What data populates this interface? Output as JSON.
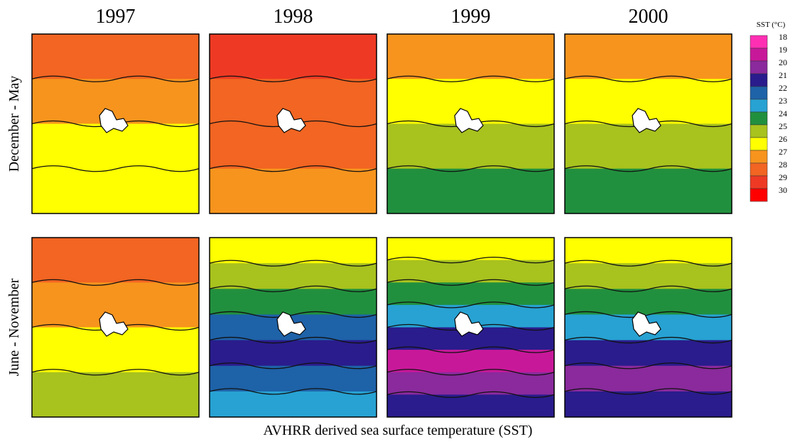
{
  "header": {
    "columns": [
      "1997",
      "1998",
      "1999",
      "2000"
    ],
    "rows": [
      "December - May",
      "June - November"
    ]
  },
  "legend": {
    "title": "SST (°C)",
    "ticks": [
      18,
      19,
      20,
      21,
      22,
      23,
      24,
      25,
      26,
      27,
      28,
      29,
      30
    ],
    "colors": [
      "#ff2fb4",
      "#c8189a",
      "#8a2a9c",
      "#2a1c8c",
      "#1e62a8",
      "#27a2d2",
      "#21903e",
      "#a8c21e",
      "#ffff00",
      "#f7941d",
      "#f26522",
      "#ee3a24",
      "#ff0000"
    ]
  },
  "panels": [
    [
      {
        "bands": [
          28,
          27,
          26,
          26
        ]
      },
      {
        "bands": [
          29,
          28,
          28,
          27
        ]
      },
      {
        "bands": [
          27,
          26,
          25,
          24
        ]
      },
      {
        "bands": [
          27,
          26,
          25,
          24
        ]
      }
    ],
    [
      {
        "bands": [
          28,
          27,
          26,
          25
        ]
      },
      {
        "bands": [
          26,
          25,
          24,
          22,
          21,
          22,
          23
        ]
      },
      {
        "bands": [
          26,
          25,
          24,
          23,
          21,
          19,
          20,
          21
        ]
      },
      {
        "bands": [
          26,
          25,
          24,
          23,
          21,
          20,
          21
        ]
      }
    ]
  ],
  "caption": "AVHRR derived sea surface temperature (SST)"
}
